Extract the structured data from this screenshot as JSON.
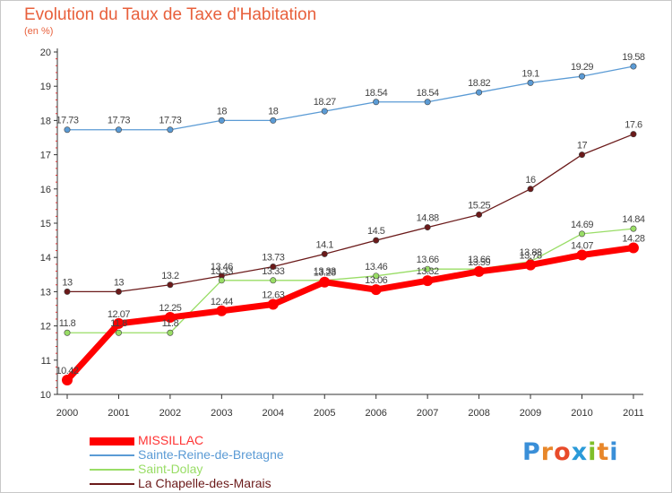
{
  "header": {
    "title": "Evolution du Taux de Taxe d'Habitation",
    "unit": "(en %)"
  },
  "logo": {
    "text": "Proxiti",
    "letters": [
      {
        "ch": "P",
        "color": "#3a8fd8"
      },
      {
        "ch": "r",
        "color": "#e8872a"
      },
      {
        "ch": "o",
        "color": "#e84b2a"
      },
      {
        "ch": "x",
        "color": "#2a9ad8"
      },
      {
        "ch": "i",
        "color": "#7fbf2a"
      },
      {
        "ch": "t",
        "color": "#e8872a"
      },
      {
        "ch": "i",
        "color": "#3a8fd8"
      }
    ]
  },
  "chart_data": {
    "type": "line",
    "x": [
      "2000",
      "2001",
      "2002",
      "2003",
      "2004",
      "2005",
      "2006",
      "2007",
      "2008",
      "2009",
      "2010",
      "2011"
    ],
    "ylim": [
      10,
      20
    ],
    "yticks": [
      "10",
      "11",
      "12",
      "13",
      "14",
      "15",
      "16",
      "17",
      "18",
      "19",
      "20"
    ],
    "grid": false,
    "legend_position": "bottom-left",
    "series": [
      {
        "name": "MISSILLAC",
        "color": "#ff0000",
        "values": [
          10.42,
          12.07,
          12.25,
          12.44,
          12.63,
          13.28,
          13.06,
          13.32,
          13.59,
          13.78,
          14.07,
          14.28
        ],
        "labels": [
          "10.42",
          "12.07",
          "12.25",
          "12.44",
          "12.63",
          "13.28",
          "13.06",
          "13.32",
          "13.59",
          "13.78",
          "14.07",
          "14.28"
        ]
      },
      {
        "name": "Sainte-Reine-de-Bretagne",
        "color": "#5b9bd5",
        "values": [
          17.73,
          17.73,
          17.73,
          18,
          18,
          18.27,
          18.54,
          18.54,
          18.82,
          19.1,
          19.29,
          19.58
        ],
        "labels": [
          "17.73",
          "17.73",
          "17.73",
          "18",
          "18",
          "18.27",
          "18.54",
          "18.54",
          "18.82",
          "19.1",
          "19.29",
          "19.58"
        ]
      },
      {
        "name": "Saint-Dolay",
        "color": "#99dd66",
        "values": [
          11.8,
          11.8,
          11.8,
          13.33,
          13.33,
          13.33,
          13.46,
          13.66,
          13.66,
          13.88,
          14.69,
          14.84
        ],
        "labels": [
          "11.8",
          "11.8",
          "11.8",
          "13.33",
          "13.33",
          "13.33",
          "13.46",
          "13.66",
          "13.66",
          "13.88",
          "14.69",
          "14.84"
        ]
      },
      {
        "name": "La Chapelle-des-Marais",
        "color": "#6b1a1a",
        "values": [
          13,
          13,
          13.2,
          13.46,
          13.73,
          14.1,
          14.5,
          14.88,
          15.25,
          16,
          17,
          17.6
        ],
        "labels": [
          "13",
          "13",
          "13.2",
          "13.46",
          "13.73",
          "14.1",
          "14.5",
          "14.88",
          "15.25",
          "16",
          "17",
          "17.6"
        ]
      }
    ]
  }
}
